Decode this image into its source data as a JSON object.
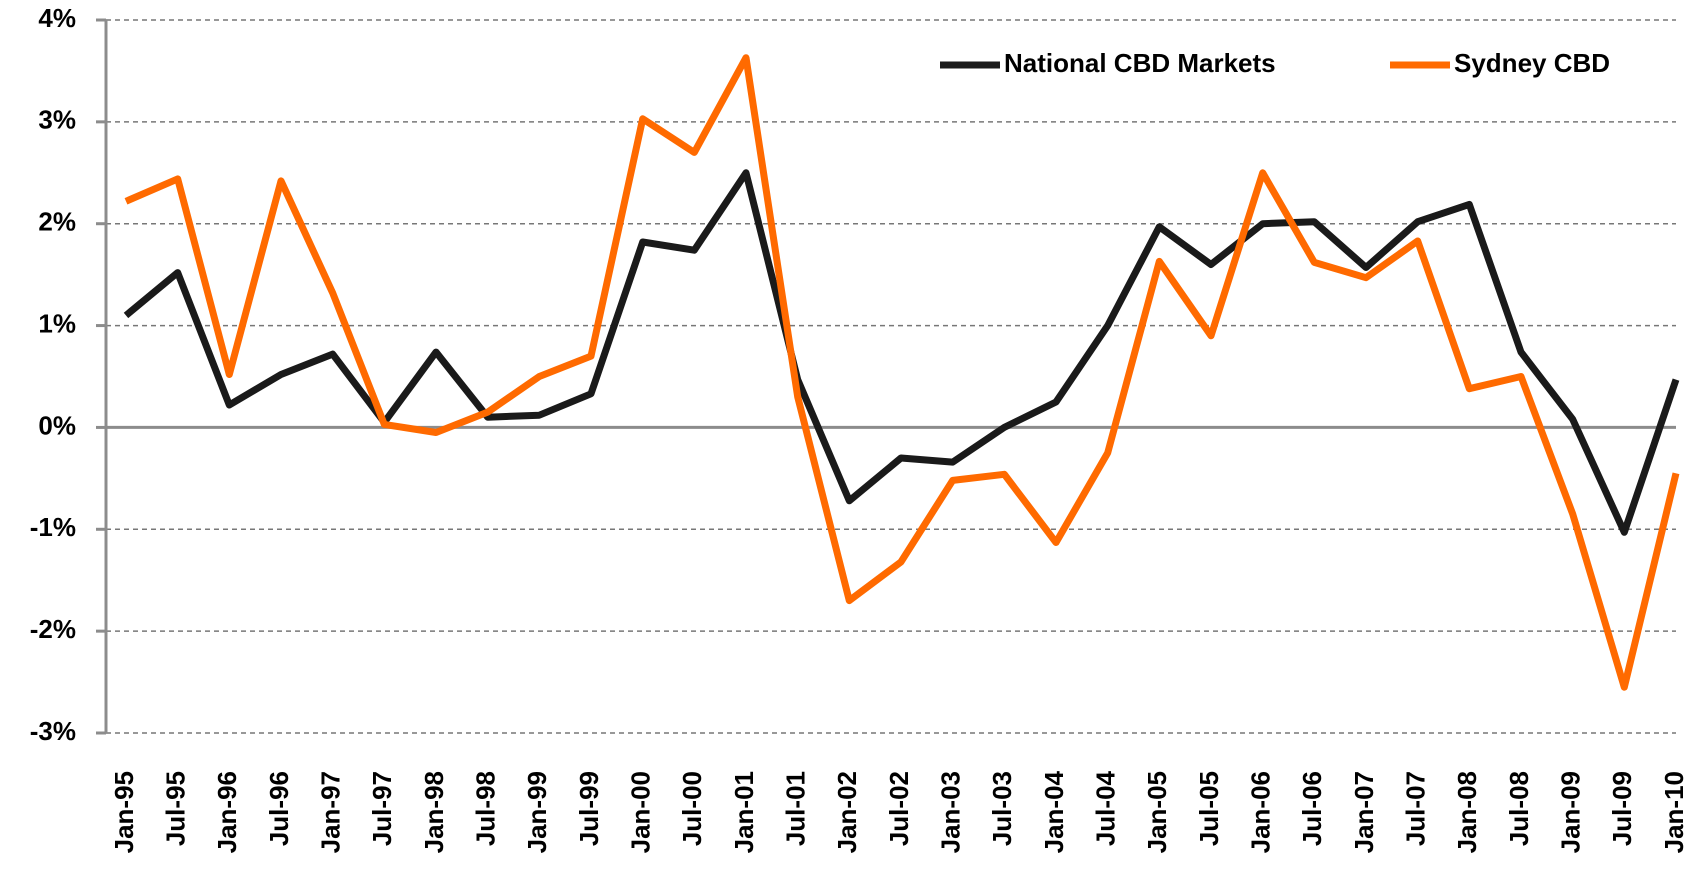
{
  "chart_data": {
    "type": "line",
    "categories": [
      "Jan-95",
      "Jul-95",
      "Jan-96",
      "Jul-96",
      "Jan-97",
      "Jul-97",
      "Jan-98",
      "Jul-98",
      "Jan-99",
      "Jul-99",
      "Jan-00",
      "Jul-00",
      "Jan-01",
      "Jul-01",
      "Jan-02",
      "Jul-02",
      "Jan-03",
      "Jul-03",
      "Jan-04",
      "Jul-04",
      "Jan-05",
      "Jul-05",
      "Jan-06",
      "Jul-06",
      "Jan-07",
      "Jul-07",
      "Jan-08",
      "Jul-08",
      "Jan-09",
      "Jul-09",
      "Jan-10"
    ],
    "series": [
      {
        "name": "National CBD Markets",
        "color": "#1a1a1a",
        "values": [
          1.1,
          1.52,
          0.22,
          0.52,
          0.72,
          0.05,
          0.74,
          0.1,
          0.12,
          0.33,
          1.82,
          1.74,
          2.5,
          0.47,
          -0.72,
          -0.3,
          -0.34,
          0.0,
          0.25,
          1.0,
          1.97,
          1.6,
          2.0,
          2.02,
          1.57,
          2.02,
          2.19,
          0.74,
          0.08,
          -1.03,
          0.47
        ]
      },
      {
        "name": "Sydney CBD",
        "color": "#ff6a00",
        "values": [
          2.22,
          2.44,
          0.52,
          2.42,
          1.32,
          0.03,
          -0.05,
          0.15,
          0.5,
          0.7,
          3.03,
          2.7,
          3.63,
          0.3,
          -1.7,
          -1.32,
          -0.52,
          -0.46,
          -1.13,
          -0.25,
          1.63,
          0.9,
          2.5,
          1.62,
          1.47,
          1.83,
          0.38,
          0.5,
          -0.85,
          -2.55,
          -0.45
        ]
      }
    ],
    "ylim": [
      -3,
      4
    ],
    "yticks": [
      {
        "value": -3,
        "label": "-3%"
      },
      {
        "value": -2,
        "label": "-2%"
      },
      {
        "value": -1,
        "label": "-1%"
      },
      {
        "value": 0,
        "label": "0%"
      },
      {
        "value": 1,
        "label": "1%"
      },
      {
        "value": 2,
        "label": "2%"
      },
      {
        "value": 3,
        "label": "3%"
      },
      {
        "value": 4,
        "label": "4%"
      }
    ],
    "grid": true,
    "legend": "top-right"
  }
}
